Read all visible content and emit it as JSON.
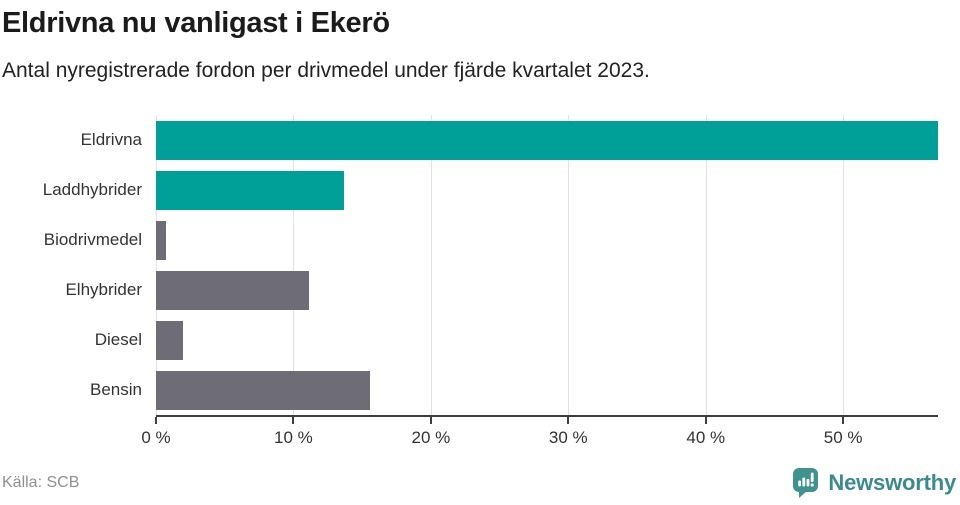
{
  "header": {
    "title": "Eldrivna nu vanligast i Ekerö",
    "subtitle": "Antal nyregistrerade fordon per drivmedel under fjärde kvartalet 2023."
  },
  "chart_data": {
    "type": "bar",
    "orientation": "horizontal",
    "title": "Eldrivna nu vanligast i Ekerö",
    "subtitle": "Antal nyregistrerade fordon per drivmedel under fjärde kvartalet 2023.",
    "categories": [
      "Eldrivna",
      "Laddhybrider",
      "Biodrivmedel",
      "Elhybrider",
      "Diesel",
      "Bensin"
    ],
    "values": [
      56.9,
      13.7,
      0.7,
      11.1,
      2.0,
      15.6
    ],
    "unit": "%",
    "bar_colors": [
      "#00a099",
      "#00a099",
      "#6e6c74",
      "#6e6c74",
      "#6e6c74",
      "#6e6c74"
    ],
    "x_ticks": [
      0,
      10,
      20,
      30,
      40,
      50
    ],
    "x_tick_labels": [
      "0 %",
      "10 %",
      "20 %",
      "30 %",
      "40 %",
      "50 %"
    ],
    "xlim": [
      0,
      56.9
    ],
    "grid": true,
    "legend": "none",
    "xlabel": "",
    "ylabel": ""
  },
  "footer": {
    "source": "Källa: SCB",
    "brand": "Newsworthy"
  },
  "colors": {
    "accent_teal": "#00a099",
    "muted_gray": "#6e6c74",
    "gridline": "#e2e2e2",
    "axis": "#3d3d3d",
    "logo_icon": "#3e938e",
    "logo_text": "#3a8b8e",
    "source_text": "#8f8f8f"
  }
}
